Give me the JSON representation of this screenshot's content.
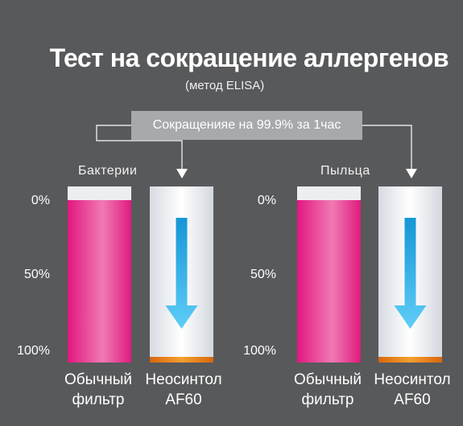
{
  "title": "Тест на сокращение аллергенов",
  "subtitle": "(метод ELISA)",
  "callout": "Сокращенияе на 99.9% за 1час",
  "colors": {
    "background": "#58595b",
    "standard_filter": "#e9408f",
    "af60_bar": "#eef2f6",
    "af60_residue": "#e8801f",
    "arrow": "#1ea4e0",
    "callout_bg": "#a7a9ab"
  },
  "chart_data": [
    {
      "type": "bar",
      "title": "Бактерии",
      "categories": [
        "Обычный фильтр",
        "Неосинтол AF60"
      ],
      "values": [
        100,
        0.1
      ],
      "ylim": [
        0,
        100
      ],
      "y_ticks": [
        "0%",
        "50%",
        "100%"
      ],
      "grid": false
    },
    {
      "type": "bar",
      "title": "Пыльца",
      "categories": [
        "Обычный фильтр",
        "Неосинтол AF60"
      ],
      "values": [
        100,
        0.1
      ],
      "ylim": [
        0,
        100
      ],
      "y_ticks": [
        "0%",
        "50%",
        "100%"
      ],
      "grid": false
    }
  ],
  "x_labels": {
    "standard_line1": "Обычный",
    "standard_line2": "фильтр",
    "af60_line1": "Неосинтол",
    "af60_line2": "AF60"
  }
}
